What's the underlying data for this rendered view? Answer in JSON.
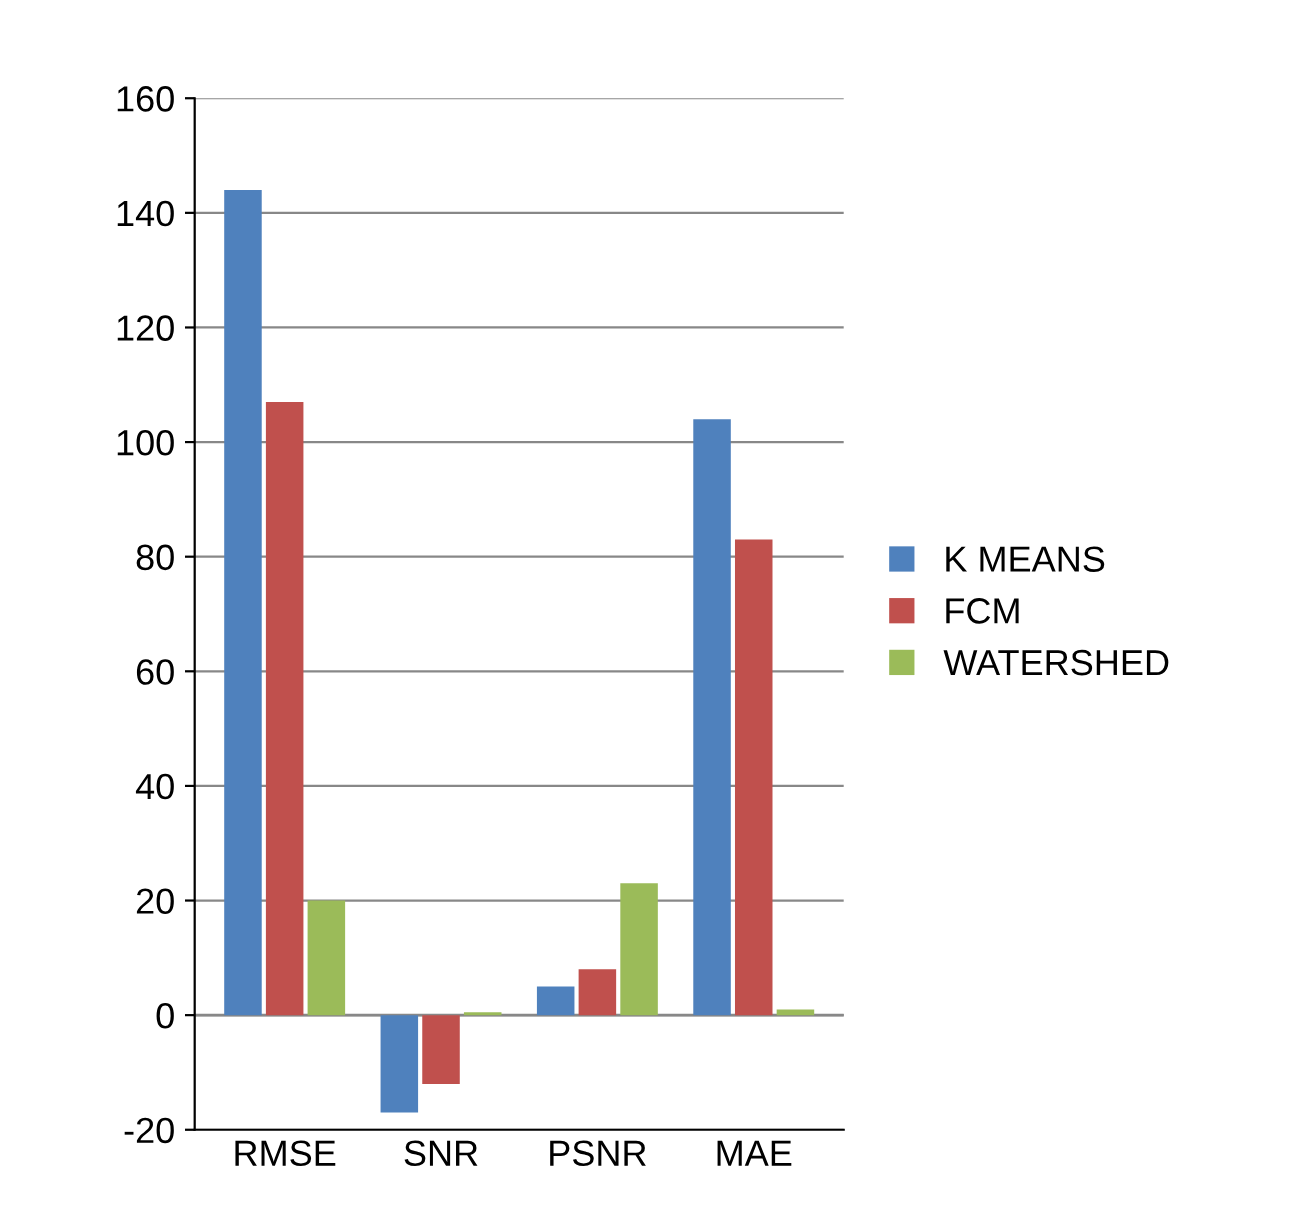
{
  "chart_data": {
    "type": "bar",
    "categories": [
      "RMSE",
      "SNR",
      "PSNR",
      "MAE"
    ],
    "series": [
      {
        "name": "K MEANS",
        "color": "#4f81bd",
        "values": [
          144,
          -17,
          5,
          104
        ]
      },
      {
        "name": "FCM",
        "color": "#c0504d",
        "values": [
          107,
          -12,
          8,
          83
        ]
      },
      {
        "name": "WATERSHED",
        "color": "#9bbb59",
        "values": [
          20,
          0.5,
          23,
          1
        ]
      }
    ],
    "ylim": [
      -20,
      160
    ],
    "yticks": [
      -20,
      0,
      20,
      40,
      60,
      80,
      100,
      120,
      140,
      160
    ],
    "grid": "y",
    "legend": "right"
  }
}
